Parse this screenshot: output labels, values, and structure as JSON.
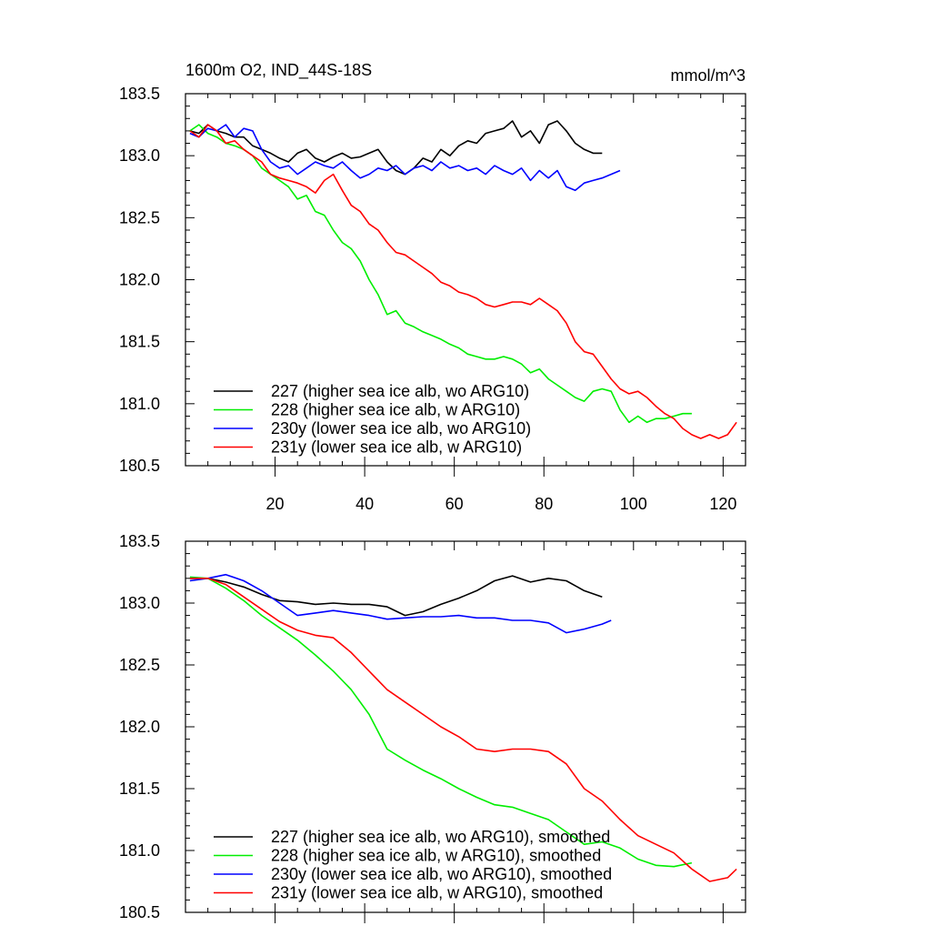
{
  "colors": {
    "227": "#000000",
    "228": "#00ee00",
    "230y": "#0000ff",
    "231y": "#ff0000"
  },
  "chart_data": [
    {
      "type": "line",
      "title": "1600m O2, IND_44S-18S",
      "units_label": "mmol/m^3",
      "xlim": [
        0,
        125
      ],
      "ylim": [
        180.5,
        183.5
      ],
      "xticks": [
        20,
        40,
        60,
        80,
        100,
        120
      ],
      "yticks": [
        180.5,
        181.0,
        181.5,
        182.0,
        182.5,
        183.0,
        183.5
      ],
      "ytick_labels": [
        "180.5",
        "181.0",
        "181.5",
        "182.0",
        "182.5",
        "183.0",
        "183.5"
      ],
      "legend_position": "bottom-left",
      "series": [
        {
          "name": "227 (higher sea ice alb, wo ARG10)",
          "key": "227",
          "x": [
            1,
            3,
            5,
            7,
            9,
            11,
            13,
            15,
            17,
            19,
            21,
            23,
            25,
            27,
            29,
            31,
            33,
            35,
            37,
            39,
            41,
            43,
            45,
            47,
            49,
            51,
            53,
            55,
            57,
            59,
            61,
            63,
            65,
            67,
            69,
            71,
            73,
            75,
            77,
            79,
            81,
            83,
            85,
            87,
            89,
            91,
            93
          ],
          "y": [
            183.2,
            183.18,
            183.25,
            183.2,
            183.18,
            183.15,
            183.15,
            183.08,
            183.05,
            183.02,
            182.98,
            182.95,
            183.02,
            183.05,
            182.98,
            182.95,
            182.99,
            183.02,
            182.98,
            182.99,
            183.02,
            183.05,
            182.95,
            182.88,
            182.85,
            182.9,
            182.98,
            182.95,
            183.05,
            183.0,
            183.08,
            183.12,
            183.1,
            183.18,
            183.2,
            183.22,
            183.28,
            183.15,
            183.2,
            183.1,
            183.25,
            183.28,
            183.2,
            183.1,
            183.05,
            183.02,
            183.02
          ]
        },
        {
          "name": "228 (higher sea ice alb, w ARG10)",
          "key": "228",
          "x": [
            1,
            3,
            5,
            7,
            9,
            11,
            13,
            15,
            17,
            19,
            21,
            23,
            25,
            27,
            29,
            31,
            33,
            35,
            37,
            39,
            41,
            43,
            45,
            47,
            49,
            51,
            53,
            55,
            57,
            59,
            61,
            63,
            65,
            67,
            69,
            71,
            73,
            75,
            77,
            79,
            81,
            83,
            85,
            87,
            89,
            91,
            93,
            95,
            97,
            99,
            101,
            103,
            105,
            107,
            109,
            111,
            113
          ],
          "y": [
            183.2,
            183.25,
            183.18,
            183.15,
            183.1,
            183.08,
            183.05,
            183.0,
            182.9,
            182.85,
            182.8,
            182.75,
            182.65,
            182.68,
            182.55,
            182.52,
            182.4,
            182.3,
            182.25,
            182.15,
            182.0,
            181.88,
            181.72,
            181.75,
            181.65,
            181.62,
            181.58,
            181.55,
            181.52,
            181.48,
            181.45,
            181.4,
            181.38,
            181.36,
            181.36,
            181.38,
            181.36,
            181.32,
            181.25,
            181.28,
            181.2,
            181.15,
            181.1,
            181.05,
            181.02,
            181.1,
            181.12,
            181.1,
            180.95,
            180.85,
            180.9,
            180.85,
            180.88,
            180.88,
            180.9,
            180.92,
            180.92
          ]
        },
        {
          "name": "230y (lower sea ice alb, wo ARG10)",
          "key": "230y",
          "x": [
            1,
            3,
            5,
            7,
            9,
            11,
            13,
            15,
            17,
            19,
            21,
            23,
            25,
            27,
            29,
            31,
            33,
            35,
            37,
            39,
            41,
            43,
            45,
            47,
            49,
            51,
            53,
            55,
            57,
            59,
            61,
            63,
            65,
            67,
            69,
            71,
            73,
            75,
            77,
            79,
            81,
            83,
            85,
            87,
            89,
            91,
            93,
            95,
            97
          ],
          "y": [
            183.18,
            183.15,
            183.22,
            183.2,
            183.25,
            183.15,
            183.22,
            183.2,
            183.05,
            182.95,
            182.9,
            182.92,
            182.85,
            182.9,
            182.95,
            182.92,
            182.9,
            182.95,
            182.88,
            182.82,
            182.85,
            182.9,
            182.88,
            182.92,
            182.85,
            182.9,
            182.92,
            182.88,
            182.95,
            182.9,
            182.92,
            182.88,
            182.9,
            182.85,
            182.92,
            182.88,
            182.85,
            182.9,
            182.8,
            182.88,
            182.82,
            182.88,
            182.75,
            182.72,
            182.78,
            182.8,
            182.82,
            182.85,
            182.88
          ]
        },
        {
          "name": "231y (lower sea ice alb, w ARG10)",
          "key": "231y",
          "x": [
            1,
            3,
            5,
            7,
            9,
            11,
            13,
            15,
            17,
            19,
            21,
            23,
            25,
            27,
            29,
            31,
            33,
            35,
            37,
            39,
            41,
            43,
            45,
            47,
            49,
            51,
            53,
            55,
            57,
            59,
            61,
            63,
            65,
            67,
            69,
            71,
            73,
            75,
            77,
            79,
            81,
            83,
            85,
            87,
            89,
            91,
            93,
            95,
            97,
            99,
            101,
            103,
            105,
            107,
            109,
            111,
            113,
            115,
            117,
            119,
            121,
            123
          ],
          "y": [
            183.2,
            183.15,
            183.25,
            183.2,
            183.1,
            183.12,
            183.05,
            183.0,
            182.95,
            182.85,
            182.82,
            182.8,
            182.78,
            182.75,
            182.7,
            182.8,
            182.85,
            182.72,
            182.6,
            182.55,
            182.45,
            182.4,
            182.3,
            182.22,
            182.2,
            182.15,
            182.1,
            182.05,
            181.98,
            181.95,
            181.9,
            181.88,
            181.85,
            181.8,
            181.78,
            181.8,
            181.82,
            181.82,
            181.8,
            181.85,
            181.8,
            181.75,
            181.65,
            181.5,
            181.42,
            181.4,
            181.3,
            181.2,
            181.12,
            181.08,
            181.1,
            181.05,
            180.98,
            180.92,
            180.88,
            180.8,
            180.75,
            180.72,
            180.75,
            180.72,
            180.75,
            180.85
          ]
        }
      ]
    },
    {
      "type": "line",
      "xlim": [
        0,
        125
      ],
      "ylim": [
        180.5,
        183.5
      ],
      "yticks": [
        180.5,
        181.0,
        181.5,
        182.0,
        182.5,
        183.0,
        183.5
      ],
      "ytick_labels": [
        "180.5",
        "181.0",
        "181.5",
        "182.0",
        "182.5",
        "183.0",
        "183.5"
      ],
      "legend_position": "bottom-left",
      "series": [
        {
          "name": "227 (higher sea ice alb, wo ARG10), smoothed",
          "key": "227",
          "x": [
            1,
            5,
            9,
            13,
            17,
            21,
            25,
            29,
            33,
            37,
            41,
            45,
            49,
            53,
            57,
            61,
            65,
            69,
            73,
            77,
            81,
            85,
            89,
            93
          ],
          "y": [
            183.2,
            183.2,
            183.17,
            183.13,
            183.07,
            183.02,
            183.01,
            182.99,
            183.0,
            182.99,
            182.99,
            182.97,
            182.9,
            182.93,
            182.99,
            183.04,
            183.1,
            183.18,
            183.22,
            183.17,
            183.2,
            183.18,
            183.1,
            183.05
          ]
        },
        {
          "name": "228 (higher sea ice alb, w ARG10), smoothed",
          "key": "228",
          "x": [
            1,
            5,
            9,
            13,
            17,
            21,
            25,
            29,
            33,
            37,
            41,
            45,
            49,
            53,
            57,
            61,
            65,
            69,
            73,
            77,
            81,
            85,
            89,
            93,
            97,
            101,
            105,
            109,
            113
          ],
          "y": [
            183.21,
            183.2,
            183.12,
            183.02,
            182.9,
            182.8,
            182.7,
            182.58,
            182.45,
            182.3,
            182.1,
            181.82,
            181.73,
            181.65,
            181.58,
            181.5,
            181.43,
            181.37,
            181.35,
            181.3,
            181.25,
            181.15,
            181.05,
            181.07,
            181.02,
            180.93,
            180.88,
            180.87,
            180.9
          ]
        },
        {
          "name": "230y (lower sea ice alb, wo ARG10), smoothed",
          "key": "230y",
          "x": [
            1,
            5,
            9,
            13,
            17,
            21,
            25,
            29,
            33,
            37,
            41,
            45,
            49,
            53,
            57,
            61,
            65,
            69,
            73,
            77,
            81,
            85,
            89,
            93,
            95
          ],
          "y": [
            183.18,
            183.2,
            183.23,
            183.18,
            183.1,
            183.0,
            182.9,
            182.92,
            182.94,
            182.92,
            182.9,
            182.87,
            182.88,
            182.89,
            182.89,
            182.9,
            182.88,
            182.88,
            182.86,
            182.86,
            182.84,
            182.76,
            182.79,
            182.83,
            182.86
          ]
        },
        {
          "name": "231y (lower sea ice alb, w ARG10), smoothed",
          "key": "231y",
          "x": [
            1,
            5,
            9,
            13,
            17,
            21,
            25,
            29,
            33,
            37,
            41,
            45,
            49,
            53,
            57,
            61,
            65,
            69,
            73,
            77,
            81,
            85,
            89,
            93,
            97,
            101,
            105,
            109,
            113,
            117,
            121,
            123
          ],
          "y": [
            183.2,
            183.2,
            183.15,
            183.05,
            182.95,
            182.85,
            182.78,
            182.74,
            182.72,
            182.6,
            182.45,
            182.3,
            182.2,
            182.1,
            182.0,
            181.92,
            181.82,
            181.8,
            181.82,
            181.82,
            181.8,
            181.7,
            181.5,
            181.4,
            181.25,
            181.12,
            181.05,
            180.98,
            180.85,
            180.75,
            180.78,
            180.85
          ]
        }
      ]
    }
  ]
}
